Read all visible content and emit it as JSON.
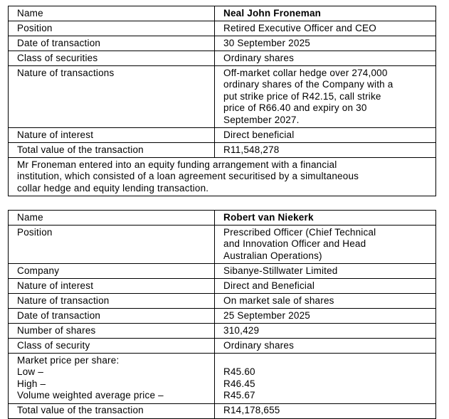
{
  "page": {
    "background_color": "#ffffff",
    "text_color": "#000000",
    "border_color": "#000000"
  },
  "table1": {
    "rows": {
      "name": {
        "label": "Name",
        "value": "Neal John Froneman"
      },
      "position": {
        "label": "Position",
        "value": "Retired Executive Officer and CEO"
      },
      "date_of_transaction": {
        "label": "Date of transaction",
        "value": "30 September 2025"
      },
      "class_of_securities": {
        "label": "Class of securities",
        "value": "Ordinary shares"
      },
      "nature_of_transactions": {
        "label": "Nature of transactions",
        "value_lines": [
          "Off-market collar hedge over 274,000",
          "ordinary shares of the Company with a",
          "put strike price of R42.15, call strike",
          "price of R66.40 and expiry on 30",
          "September 2027."
        ]
      },
      "nature_of_interest": {
        "label": "Nature of interest",
        "value": "Direct beneficial"
      },
      "total_value": {
        "label": "Total value of the transaction",
        "value": "R11,548,278"
      }
    },
    "note_lines": [
      "Mr Froneman entered into an equity funding arrangement with a financial",
      "institution, which consisted of a loan agreement securitised by a simultaneous",
      "collar hedge and equity lending transaction."
    ]
  },
  "table2": {
    "rows": {
      "name": {
        "label": "Name",
        "value": "Robert van Niekerk"
      },
      "position": {
        "label": "Position",
        "value_lines": [
          "Prescribed Officer (Chief Technical",
          "and Innovation Officer and Head",
          "Australian Operations)"
        ]
      },
      "company": {
        "label": "Company",
        "value": "Sibanye-Stillwater Limited"
      },
      "nature_of_interest": {
        "label": "Nature of interest",
        "value": "Direct and Beneficial"
      },
      "nature_of_transaction": {
        "label": "Nature of transaction",
        "value": "On market sale of shares"
      },
      "date_of_transaction": {
        "label": "Date of transaction",
        "value": "25 September 2025"
      },
      "number_of_shares": {
        "label": "Number of shares",
        "value": "310,429"
      },
      "class_of_security": {
        "label": "Class of security",
        "value": "Ordinary shares"
      },
      "market_price": {
        "label_lines": [
          "Market price per share:",
          "Low –",
          "High –",
          "Volume weighted average price –"
        ],
        "value_lines": [
          "",
          "R45.60",
          "R46.45",
          "R45.67"
        ]
      },
      "total_value": {
        "label": "Total value of the transaction",
        "value": "R14,178,655"
      }
    }
  }
}
